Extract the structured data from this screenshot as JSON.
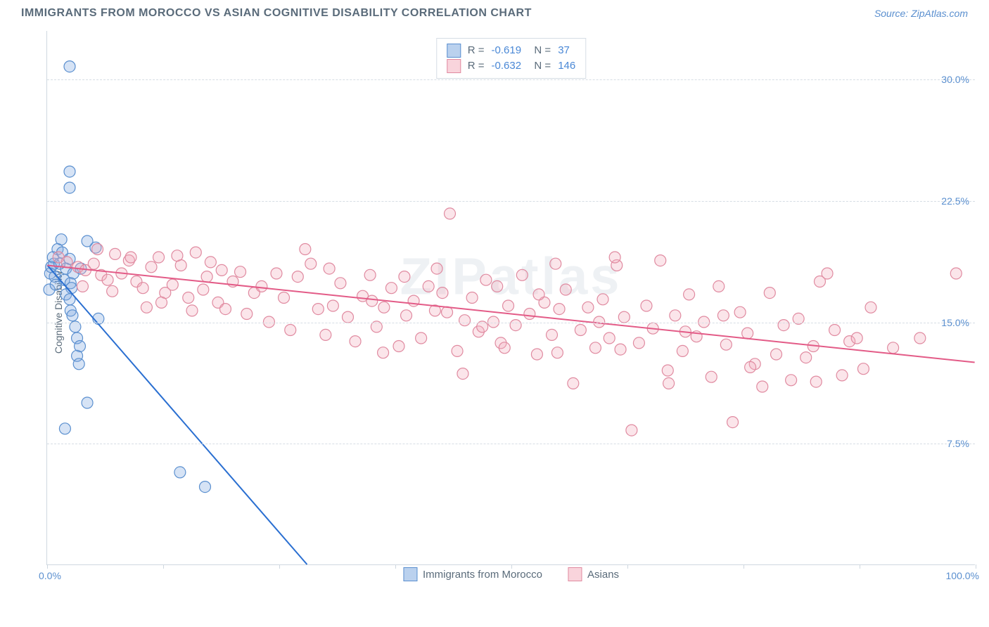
{
  "title": "IMMIGRANTS FROM MOROCCO VS ASIAN COGNITIVE DISABILITY CORRELATION CHART",
  "source": "Source: ZipAtlas.com",
  "watermark": "ZIPatlas",
  "y_axis_label": "Cognitive Disability",
  "chart": {
    "type": "scatter",
    "background_color": "#ffffff",
    "grid_color": "#d6dde4",
    "axis_color": "#cfd8e0",
    "xlim": [
      0,
      100
    ],
    "ylim": [
      0,
      33
    ],
    "x_ticks": [
      0,
      12.5,
      25,
      37.5,
      50,
      62.5,
      75,
      87.5,
      100
    ],
    "y_ticks": [
      7.5,
      15.0,
      22.5,
      30.0
    ],
    "y_tick_labels": [
      "7.5%",
      "15.0%",
      "22.5%",
      "30.0%"
    ],
    "x_origin_label": "0.0%",
    "x_max_label": "100.0%",
    "marker_radius": 8,
    "marker_fill_opacity": 0.32,
    "marker_stroke_width": 1.2,
    "trend_line_width": 2,
    "series": [
      {
        "name": "Immigrants from Morocco",
        "legend_label": "Immigrants from Morocco",
        "R": "-0.619",
        "N": "37",
        "fill": "#7ea9e0",
        "stroke": "#5a8fcf",
        "line_color": "#2a6fd1",
        "trend": {
          "x1": 0,
          "y1": 18.5,
          "x2": 28,
          "y2": 0
        },
        "points": [
          [
            2.4,
            30.8
          ],
          [
            2.4,
            24.3
          ],
          [
            2.4,
            23.3
          ],
          [
            1.1,
            19.5
          ],
          [
            1.5,
            20.1
          ],
          [
            0.7,
            18.6
          ],
          [
            2.0,
            18.3
          ],
          [
            0.3,
            18.0
          ],
          [
            0.6,
            19.0
          ],
          [
            1.6,
            19.3
          ],
          [
            2.8,
            18.0
          ],
          [
            3.6,
            18.3
          ],
          [
            4.3,
            20.0
          ],
          [
            5.2,
            19.6
          ],
          [
            1.8,
            17.6
          ],
          [
            2.5,
            17.4
          ],
          [
            2.6,
            17.1
          ],
          [
            2.0,
            16.7
          ],
          [
            2.4,
            16.4
          ],
          [
            2.5,
            15.7
          ],
          [
            2.7,
            15.4
          ],
          [
            3.0,
            14.7
          ],
          [
            3.2,
            14.0
          ],
          [
            3.5,
            13.5
          ],
          [
            3.2,
            12.9
          ],
          [
            3.4,
            12.4
          ],
          [
            0.8,
            17.8
          ],
          [
            0.4,
            18.4
          ],
          [
            0.2,
            17.0
          ],
          [
            4.3,
            10.0
          ],
          [
            1.9,
            8.4
          ],
          [
            14.3,
            5.7
          ],
          [
            17.0,
            4.8
          ],
          [
            2.4,
            18.9
          ],
          [
            5.5,
            15.2
          ],
          [
            0.9,
            17.3
          ],
          [
            1.3,
            18.6
          ]
        ]
      },
      {
        "name": "Asians",
        "legend_label": "Asians",
        "R": "-0.632",
        "N": "146",
        "fill": "#f3aebd",
        "stroke": "#e08aa0",
        "line_color": "#e35b87",
        "trend": {
          "x1": 0,
          "y1": 18.5,
          "x2": 100,
          "y2": 12.5
        },
        "points": [
          [
            1.2,
            19.0
          ],
          [
            2.1,
            18.7
          ],
          [
            3.3,
            18.4
          ],
          [
            4.1,
            18.2
          ],
          [
            5.0,
            18.6
          ],
          [
            5.8,
            17.9
          ],
          [
            6.5,
            17.6
          ],
          [
            7.3,
            19.2
          ],
          [
            8.0,
            18.0
          ],
          [
            8.8,
            18.8
          ],
          [
            9.6,
            17.5
          ],
          [
            10.3,
            17.1
          ],
          [
            11.2,
            18.4
          ],
          [
            12.0,
            19.0
          ],
          [
            12.7,
            16.8
          ],
          [
            13.5,
            17.3
          ],
          [
            14.4,
            18.5
          ],
          [
            15.2,
            16.5
          ],
          [
            16.0,
            19.3
          ],
          [
            16.8,
            17.0
          ],
          [
            17.6,
            18.7
          ],
          [
            18.4,
            16.2
          ],
          [
            19.2,
            15.8
          ],
          [
            20.0,
            17.5
          ],
          [
            20.8,
            18.1
          ],
          [
            21.5,
            15.5
          ],
          [
            22.3,
            16.8
          ],
          [
            23.1,
            17.2
          ],
          [
            23.9,
            15.0
          ],
          [
            24.7,
            18.0
          ],
          [
            25.5,
            16.5
          ],
          [
            26.2,
            14.5
          ],
          [
            27.0,
            17.8
          ],
          [
            27.8,
            19.5
          ],
          [
            28.4,
            18.6
          ],
          [
            29.2,
            15.8
          ],
          [
            30.0,
            14.2
          ],
          [
            30.8,
            16.0
          ],
          [
            31.6,
            17.4
          ],
          [
            32.4,
            15.3
          ],
          [
            33.2,
            13.8
          ],
          [
            34.0,
            16.6
          ],
          [
            34.8,
            17.9
          ],
          [
            35.5,
            14.7
          ],
          [
            36.3,
            15.9
          ],
          [
            37.1,
            17.1
          ],
          [
            37.9,
            13.5
          ],
          [
            38.7,
            15.4
          ],
          [
            39.5,
            16.3
          ],
          [
            40.3,
            14.0
          ],
          [
            41.1,
            17.2
          ],
          [
            41.8,
            15.7
          ],
          [
            42.6,
            16.8
          ],
          [
            43.4,
            21.7
          ],
          [
            44.2,
            13.2
          ],
          [
            45.0,
            15.1
          ],
          [
            45.8,
            16.5
          ],
          [
            46.5,
            14.4
          ],
          [
            47.3,
            17.6
          ],
          [
            48.1,
            15.0
          ],
          [
            48.9,
            13.7
          ],
          [
            49.7,
            16.0
          ],
          [
            50.5,
            14.8
          ],
          [
            51.2,
            17.9
          ],
          [
            52.0,
            15.5
          ],
          [
            52.8,
            13.0
          ],
          [
            53.6,
            16.2
          ],
          [
            54.4,
            14.2
          ],
          [
            55.2,
            15.8
          ],
          [
            55.9,
            17.0
          ],
          [
            56.7,
            11.2
          ],
          [
            57.5,
            14.5
          ],
          [
            58.3,
            15.9
          ],
          [
            59.1,
            13.4
          ],
          [
            59.9,
            16.4
          ],
          [
            60.6,
            14.0
          ],
          [
            61.4,
            18.5
          ],
          [
            62.2,
            15.3
          ],
          [
            63.0,
            8.3
          ],
          [
            63.8,
            13.7
          ],
          [
            64.6,
            16.0
          ],
          [
            65.3,
            14.6
          ],
          [
            66.1,
            18.8
          ],
          [
            66.9,
            12.0
          ],
          [
            67.7,
            15.4
          ],
          [
            68.5,
            13.2
          ],
          [
            69.2,
            16.7
          ],
          [
            70.0,
            14.1
          ],
          [
            70.8,
            15.0
          ],
          [
            71.6,
            11.6
          ],
          [
            72.4,
            17.2
          ],
          [
            73.2,
            13.6
          ],
          [
            73.9,
            8.8
          ],
          [
            74.7,
            15.6
          ],
          [
            75.5,
            14.3
          ],
          [
            76.3,
            12.4
          ],
          [
            77.1,
            11.0
          ],
          [
            77.9,
            16.8
          ],
          [
            78.6,
            13.0
          ],
          [
            79.4,
            14.8
          ],
          [
            80.2,
            11.4
          ],
          [
            81.0,
            15.2
          ],
          [
            81.8,
            12.8
          ],
          [
            82.6,
            13.5
          ],
          [
            83.3,
            17.5
          ],
          [
            84.1,
            18.0
          ],
          [
            84.9,
            14.5
          ],
          [
            85.7,
            11.7
          ],
          [
            86.5,
            13.8
          ],
          [
            87.3,
            14.0
          ],
          [
            88.0,
            12.1
          ],
          [
            88.8,
            15.9
          ],
          [
            91.2,
            13.4
          ],
          [
            94.1,
            14.0
          ],
          [
            98.0,
            18.0
          ],
          [
            3.8,
            17.2
          ],
          [
            5.4,
            19.5
          ],
          [
            7.0,
            16.9
          ],
          [
            9.0,
            19.0
          ],
          [
            10.7,
            15.9
          ],
          [
            12.3,
            16.2
          ],
          [
            14.0,
            19.1
          ],
          [
            15.6,
            15.7
          ],
          [
            17.2,
            17.8
          ],
          [
            18.8,
            18.2
          ],
          [
            36.2,
            13.1
          ],
          [
            42.0,
            18.3
          ],
          [
            48.5,
            17.2
          ],
          [
            55.0,
            13.1
          ],
          [
            61.8,
            13.3
          ],
          [
            68.8,
            14.4
          ],
          [
            75.8,
            12.2
          ],
          [
            82.9,
            11.3
          ],
          [
            43.1,
            15.6
          ],
          [
            49.3,
            13.4
          ],
          [
            30.4,
            18.3
          ],
          [
            38.5,
            17.8
          ],
          [
            46.9,
            14.7
          ],
          [
            54.8,
            18.6
          ],
          [
            61.2,
            19.0
          ],
          [
            35.0,
            16.3
          ],
          [
            44.8,
            11.8
          ],
          [
            53.0,
            16.7
          ],
          [
            59.5,
            15.0
          ],
          [
            67.0,
            11.2
          ],
          [
            72.9,
            15.4
          ]
        ]
      }
    ]
  }
}
